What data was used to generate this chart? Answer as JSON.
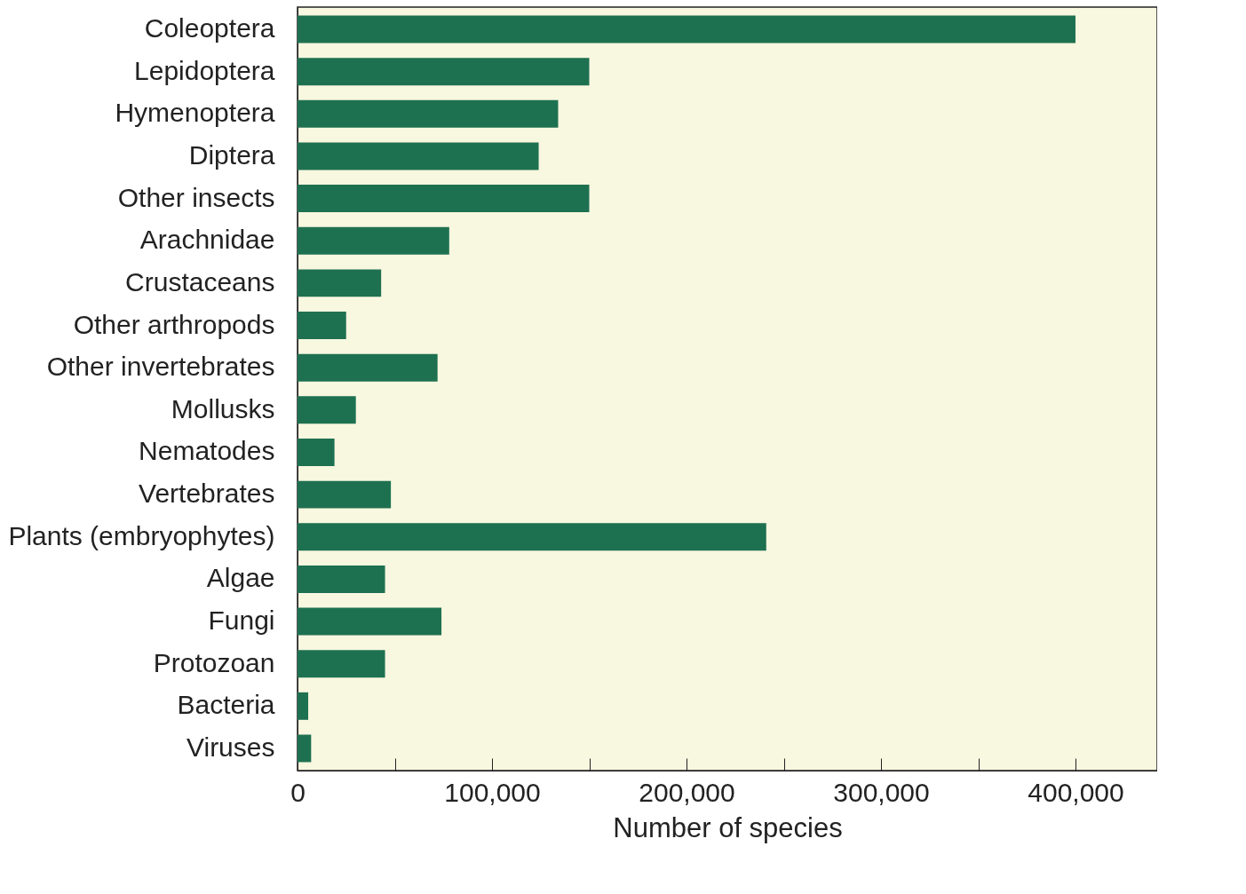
{
  "chart_data": {
    "type": "bar",
    "orientation": "horizontal",
    "xlabel": "Number of species",
    "categories": [
      "Coleoptera",
      "Lepidoptera",
      "Hymenoptera",
      "Diptera",
      "Other insects",
      "Arachnidae",
      "Crustaceans",
      "Other arthropods",
      "Other invertebrates",
      "Mollusks",
      "Nematodes",
      "Vertebrates",
      "Plants (embryophytes)",
      "Algae",
      "Fungi",
      "Protozoan",
      "Bacteria",
      "Viruses"
    ],
    "values": [
      400000,
      150000,
      134000,
      124000,
      150000,
      78000,
      43000,
      25000,
      72000,
      30000,
      19000,
      48000,
      241000,
      45000,
      74000,
      45000,
      5500,
      7000
    ],
    "color": "#1e7150",
    "xlim": [
      0,
      442000
    ],
    "xticks": [
      0,
      {
        "value": 50000,
        "label": null
      },
      {
        "value": 100000,
        "label": "100,000"
      },
      {
        "value": 150000,
        "label": null
      },
      {
        "value": 200000,
        "label": "200,000"
      },
      {
        "value": 250000,
        "label": null
      },
      {
        "value": 300000,
        "label": "300,000"
      },
      {
        "value": 350000,
        "label": null
      },
      {
        "value": 400000,
        "label": "400,000"
      }
    ],
    "grid": false
  }
}
